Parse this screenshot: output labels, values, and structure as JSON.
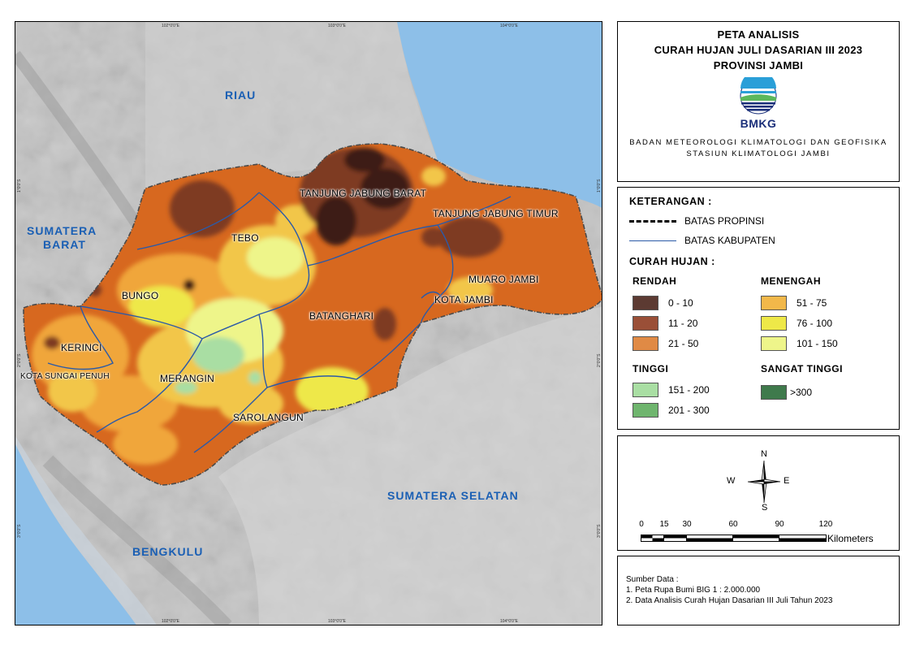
{
  "map": {
    "coords": {
      "top": [
        "102°0'0\"E",
        "103°0'0\"E",
        "104°0'0\"E"
      ],
      "bottom": [
        "102°0'0\"E",
        "103°0'0\"E",
        "104°0'0\"E"
      ],
      "left": [
        "1°0'0\"S",
        "2°0'0\"S",
        "3°0'0\"S"
      ],
      "right": [
        "1°0'0\"S",
        "2°0'0\"S",
        "3°0'0\"S"
      ]
    },
    "region_labels": {
      "riau": "RIAU",
      "sumbar_1": "SUMATERA",
      "sumbar_2": "BARAT",
      "sumsel": "SUMATERA SELATAN",
      "bengkulu": "BENGKULU"
    },
    "kabupaten": {
      "tanjung_jabung_barat": "TANJUNG JABUNG BARAT",
      "tanjung_jabung_timur": "TANJUNG JABUNG TIMUR",
      "tebo": "TEBO",
      "bungo": "BUNGO",
      "muaro_jambi": "MUARO JAMBI",
      "kota_jambi": "KOTA JAMBI",
      "batanghari": "BATANGHARI",
      "kerinci": "KERINCI",
      "kota_sungai_penuh": "KOTA SUNGAI PENUH",
      "merangin": "MERANGIN",
      "sarolangun": "SAROLANGUN"
    }
  },
  "title": {
    "line1": "PETA ANALISIS",
    "line2": "CURAH HUJAN JULI DASARIAN III 2023",
    "line3": "PROVINSI JAMBI",
    "logo_text": "BMKG",
    "agency_line1": "BADAN METEOROLOGI KLIMATOLOGI DAN GEOFISIKA",
    "agency_line2": "STASIUN KLIMATOLOGI JAMBI"
  },
  "legend": {
    "heading": "KETERANGAN :",
    "province_boundary": "BATAS PROPINSI",
    "district_boundary": "BATAS KABUPATEN",
    "rainfall_heading": "CURAH HUJAN :",
    "categories": {
      "rendah": "RENDAH",
      "menengah": "MENENGAH",
      "tinggi": "TINGGI",
      "sangat_tinggi": "SANGAT TINGGI"
    },
    "classes": {
      "c0_10": {
        "label": "0 - 10",
        "color": "#5c3a32"
      },
      "c11_20": {
        "label": "11 - 20",
        "color": "#9a4f37"
      },
      "c21_50": {
        "label": "21 - 50",
        "color": "#e08a45"
      },
      "c51_75": {
        "label": "51 - 75",
        "color": "#f2b84a"
      },
      "c76_100": {
        "label": "76 - 100",
        "color": "#eee848"
      },
      "c101_150": {
        "label": "101 - 150",
        "color": "#eef58a"
      },
      "c151_200": {
        "label": "151 - 200",
        "color": "#a9dea3"
      },
      "c201_300": {
        "label": "201 - 300",
        "color": "#6fb56e"
      },
      "c300": {
        "label": ">300",
        "color": "#3f7a4c"
      }
    }
  },
  "scale": {
    "compass": {
      "n": "N",
      "s": "S",
      "e": "E",
      "w": "W"
    },
    "ticks": [
      "0",
      "15",
      "30",
      "60",
      "90",
      "120"
    ],
    "unit": "Kilometers"
  },
  "source": {
    "heading": "Sumber Data :",
    "line1": "1. Peta Rupa Bumi BIG 1 : 2.000.000",
    "line2": "2. Data Analisis Curah Hujan Dasarian III Juli Tahun 2023"
  }
}
